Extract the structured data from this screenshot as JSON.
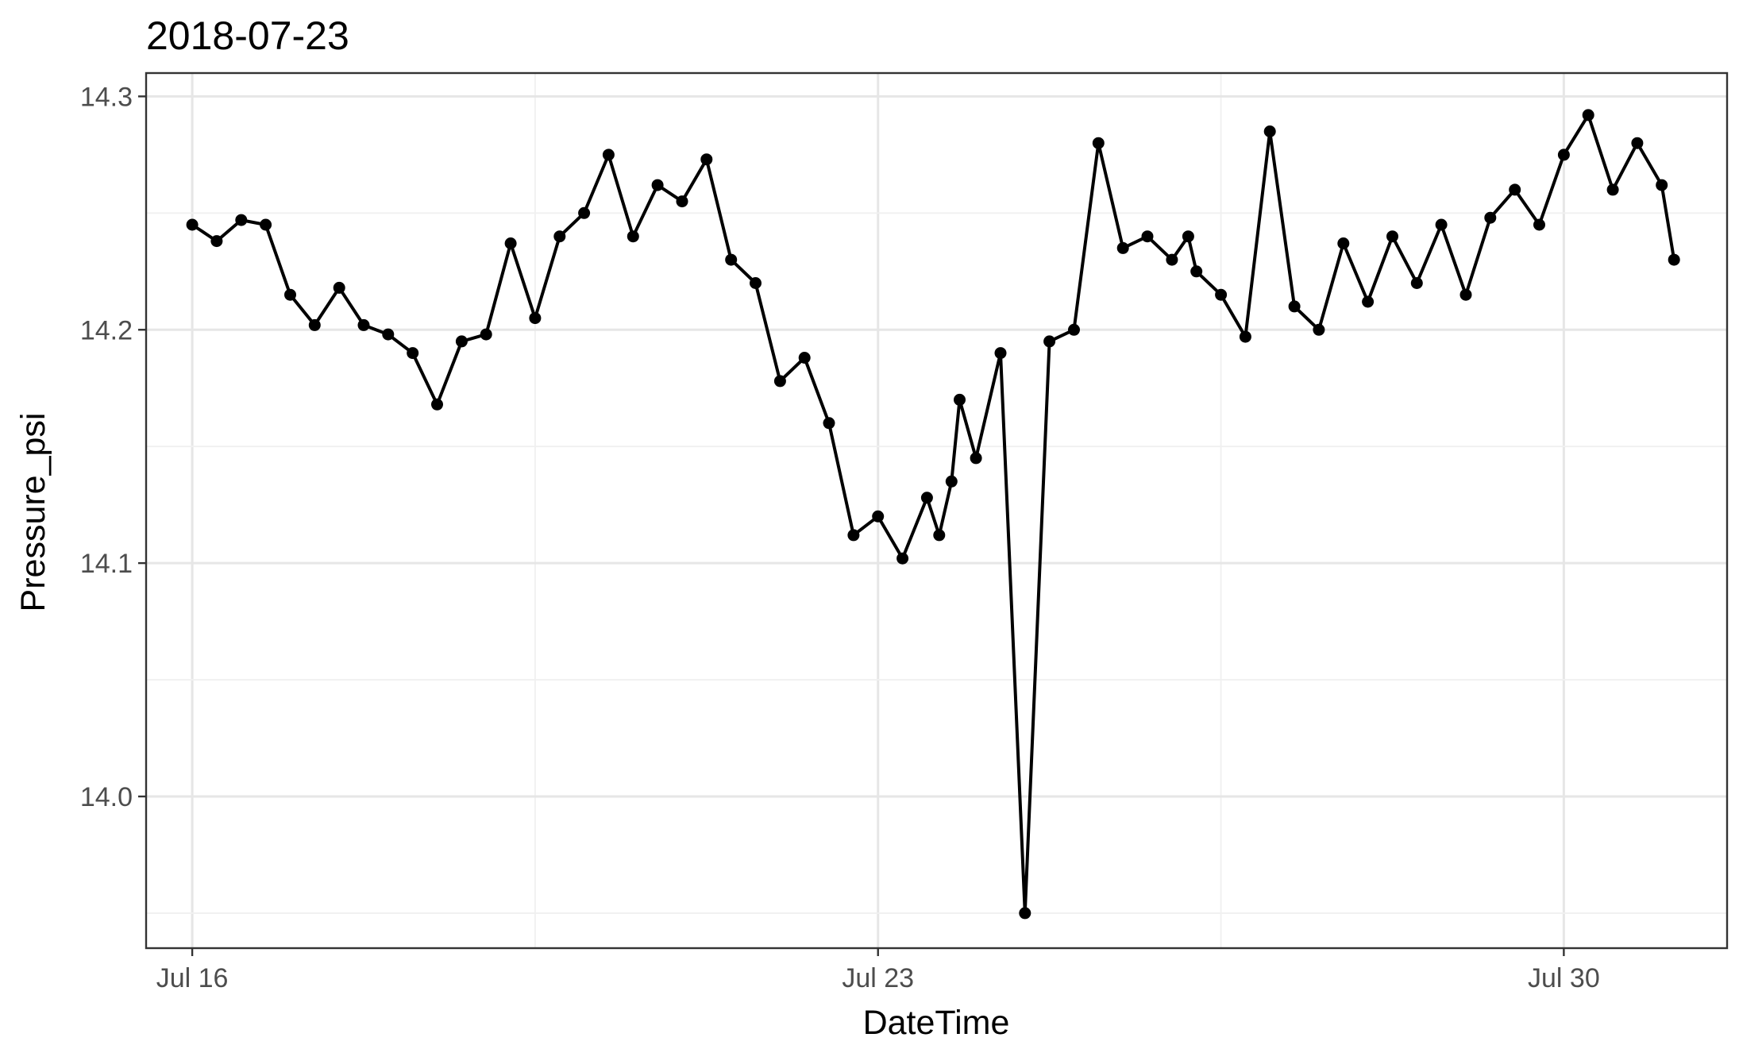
{
  "chart_data": {
    "type": "line",
    "title": "2018-07-23",
    "xlabel": "DateTime",
    "ylabel": "Pressure_psi",
    "x_ticks": [
      {
        "label": "Jul 16",
        "value": "2018-07-16"
      },
      {
        "label": "Jul 23",
        "value": "2018-07-23"
      },
      {
        "label": "Jul 30",
        "value": "2018-07-30"
      }
    ],
    "y_ticks": [
      "14.0",
      "14.1",
      "14.2",
      "14.3"
    ],
    "xlim": [
      "2018-07-15 12:42",
      "2018-07-31 16:00"
    ],
    "ylim": [
      13.935,
      14.31
    ],
    "grid": true,
    "markers": true,
    "line_color": "#000000",
    "series": [
      {
        "x": [
          "2018-07-16 00:00",
          "2018-07-16 06:00",
          "2018-07-16 12:00",
          "2018-07-16 18:00",
          "2018-07-17 00:00",
          "2018-07-17 06:00",
          "2018-07-17 12:00",
          "2018-07-17 18:00",
          "2018-07-18 00:00",
          "2018-07-18 06:00",
          "2018-07-18 12:00",
          "2018-07-18 18:00",
          "2018-07-19 00:00",
          "2018-07-19 06:00",
          "2018-07-19 12:00",
          "2018-07-19 18:00",
          "2018-07-20 00:00",
          "2018-07-20 06:00",
          "2018-07-20 12:00",
          "2018-07-20 18:00",
          "2018-07-21 00:00",
          "2018-07-21 06:00",
          "2018-07-21 12:00",
          "2018-07-21 18:00",
          "2018-07-22 00:00",
          "2018-07-22 06:00",
          "2018-07-22 12:00",
          "2018-07-22 18:00",
          "2018-07-23 00:00",
          "2018-07-23 06:00",
          "2018-07-23 12:00",
          "2018-07-23 15:00",
          "2018-07-23 18:00",
          "2018-07-23 20:00",
          "2018-07-24 00:00",
          "2018-07-24 06:00",
          "2018-07-24 12:00",
          "2018-07-24 18:00",
          "2018-07-25 00:00",
          "2018-07-25 06:00",
          "2018-07-25 12:00",
          "2018-07-25 18:00",
          "2018-07-26 00:00",
          "2018-07-26 04:00",
          "2018-07-26 06:00",
          "2018-07-26 12:00",
          "2018-07-26 18:00",
          "2018-07-27 00:00",
          "2018-07-27 06:00",
          "2018-07-27 12:00",
          "2018-07-27 18:00",
          "2018-07-28 00:00",
          "2018-07-28 06:00",
          "2018-07-28 12:00",
          "2018-07-28 18:00",
          "2018-07-29 00:00",
          "2018-07-29 06:00",
          "2018-07-29 12:00",
          "2018-07-29 18:00",
          "2018-07-30 00:00",
          "2018-07-30 06:00",
          "2018-07-30 12:00",
          "2018-07-30 18:00",
          "2018-07-31 00:00",
          "2018-07-31 03:00"
        ],
        "y": [
          14.245,
          14.238,
          14.247,
          14.245,
          14.215,
          14.202,
          14.218,
          14.202,
          14.198,
          14.19,
          14.168,
          14.195,
          14.198,
          14.237,
          14.205,
          14.24,
          14.25,
          14.275,
          14.24,
          14.262,
          14.255,
          14.273,
          14.23,
          14.22,
          14.178,
          14.188,
          14.16,
          14.112,
          14.12,
          14.102,
          14.128,
          14.112,
          14.135,
          14.17,
          14.145,
          14.19,
          13.95,
          14.195,
          14.2,
          14.28,
          14.235,
          14.24,
          14.23,
          14.24,
          14.225,
          14.215,
          14.197,
          14.285,
          14.21,
          14.2,
          14.237,
          14.212,
          14.24,
          14.22,
          14.245,
          14.215,
          14.248,
          14.26,
          14.245,
          14.275,
          14.292,
          14.26,
          14.28,
          14.262,
          14.23
        ]
      }
    ]
  }
}
